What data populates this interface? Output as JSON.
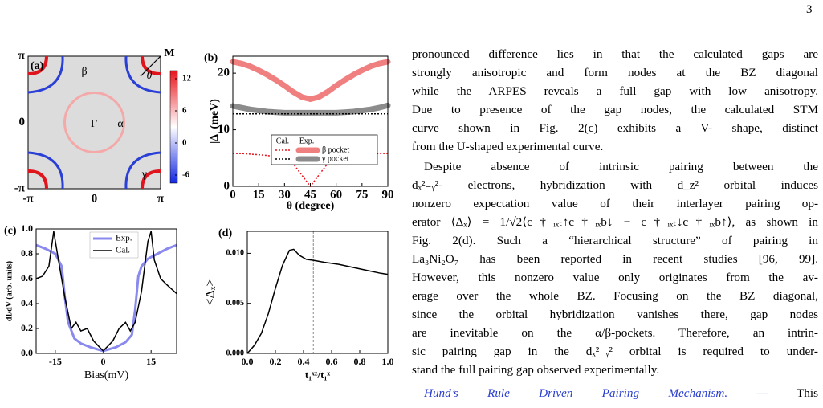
{
  "page_number": "3",
  "chart_data": [
    {
      "type": "bz-map",
      "panel_label": "(a)",
      "xlim": [
        -3.14159,
        3.14159
      ],
      "ylim": [
        -3.14159,
        3.14159
      ],
      "xticks": [
        {
          "value": -3.14159,
          "label": "-π"
        },
        0,
        {
          "value": 3.14159,
          "label": "π"
        }
      ],
      "yticks": [
        {
          "value": -3.14159,
          "label": "-π"
        },
        0,
        {
          "value": 3.14159,
          "label": "π"
        }
      ],
      "annotations": [
        "β",
        "Γ",
        "α",
        "γ",
        "M",
        "θ"
      ],
      "clim": [
        -7.5,
        13.5
      ],
      "cticks": [
        12,
        6,
        0,
        -6
      ],
      "colormap": [
        "#e8141c",
        "#ffffff",
        "#1428e0"
      ]
    },
    {
      "type": "line",
      "panel_label": "(b)",
      "x_label": "θ (degree)",
      "y_label": "|Δ| (meV)",
      "x": [
        0,
        5,
        10,
        15,
        20,
        25,
        30,
        35,
        40,
        45,
        50,
        55,
        60,
        65,
        70,
        75,
        80,
        85,
        90
      ],
      "xlim": [
        0,
        90
      ],
      "xticks": [
        0,
        15,
        30,
        45,
        60,
        75,
        90
      ],
      "ylim": [
        0,
        23
      ],
      "yticks": [
        0,
        10,
        20
      ],
      "legend_columns": [
        "Cal.",
        "Exp."
      ],
      "series": [
        {
          "name": "β pocket",
          "cal_color": "#e8141c",
          "exp_color": "#f08080",
          "cal_values": [
            5.8,
            5.8,
            5.7,
            5.6,
            5.45,
            5.2,
            5.0,
            4.0,
            2.0,
            0.0,
            2.0,
            4.0,
            5.0,
            5.2,
            5.45,
            5.6,
            5.7,
            5.8,
            5.8
          ],
          "exp_values": [
            22,
            21.7,
            21.2,
            20.5,
            19.7,
            18.8,
            17.8,
            16.7,
            15.8,
            15.4,
            15.8,
            16.7,
            17.8,
            18.8,
            19.7,
            20.5,
            21.2,
            21.7,
            22
          ]
        },
        {
          "name": "γ pocket",
          "cal_color": "#000000",
          "exp_color": "#8c8c8c",
          "cal_values": [
            12.8,
            12.8,
            12.8,
            12.8,
            12.8,
            12.8,
            12.8,
            12.8,
            12.8,
            12.8,
            12.8,
            12.8,
            12.8,
            12.8,
            12.8,
            12.8,
            12.8,
            12.8,
            12.8
          ],
          "exp_values": [
            14.2,
            13.9,
            13.6,
            13.4,
            13.2,
            13.1,
            13.0,
            13.0,
            13.0,
            13.0,
            13.0,
            13.0,
            13.0,
            13.1,
            13.2,
            13.4,
            13.6,
            13.9,
            14.3
          ]
        }
      ]
    },
    {
      "type": "line",
      "panel_label": "(c)",
      "x_label": "Bias(mV)",
      "y_label": "dI/dV (arb. units)",
      "xlim": [
        -21,
        23
      ],
      "xticks": [
        -15,
        0,
        15
      ],
      "ylim": [
        0,
        1.0
      ],
      "yticks": [
        {
          "value": 0,
          "label": "0.0"
        },
        0.2,
        0.4,
        0.6,
        0.8,
        {
          "value": 1.0,
          "label": "1.0"
        }
      ],
      "series": [
        {
          "name": "Exp.",
          "color": "#8a8aee",
          "x": [
            -21,
            -18,
            -15,
            -13,
            -12,
            -11,
            -9,
            -7,
            -4,
            0,
            4,
            7,
            9,
            10,
            11,
            12,
            14,
            17,
            20,
            23
          ],
          "values": [
            0.87,
            0.84,
            0.8,
            0.7,
            0.45,
            0.25,
            0.12,
            0.08,
            0.05,
            0.02,
            0.05,
            0.09,
            0.15,
            0.35,
            0.62,
            0.7,
            0.76,
            0.8,
            0.84,
            0.87
          ]
        },
        {
          "name": "Cal.",
          "color": "#000000",
          "x": [
            -21,
            -19,
            -17,
            -15.5,
            -14,
            -12,
            -10,
            -8.5,
            -7,
            -5,
            -3,
            0,
            3,
            5,
            7,
            8.5,
            10,
            12,
            14,
            15,
            16,
            18,
            20,
            23
          ],
          "values": [
            0.6,
            0.62,
            0.7,
            0.98,
            0.75,
            0.45,
            0.2,
            0.25,
            0.18,
            0.2,
            0.1,
            0.02,
            0.1,
            0.2,
            0.25,
            0.18,
            0.25,
            0.5,
            0.9,
            0.98,
            0.75,
            0.6,
            0.55,
            0.48
          ]
        }
      ]
    },
    {
      "type": "line",
      "panel_label": "(d)",
      "x_label": "t₁ˣᶻ/t₁ˣ",
      "y_label": "<Δₓ>",
      "xlim": [
        0,
        1.0
      ],
      "xticks": [
        {
          "value": 0,
          "label": "0.0"
        },
        0.2,
        0.4,
        0.6,
        0.8,
        {
          "value": 1.0,
          "label": "1.0"
        }
      ],
      "ylim": [
        0,
        0.0122
      ],
      "yticks": [
        {
          "value": 0,
          "label": "0.000"
        },
        0.005,
        {
          "value": 0.01,
          "label": "0.010"
        }
      ],
      "marker_x": 0.47,
      "series": [
        {
          "color": "#000000",
          "x": [
            0,
            0.05,
            0.1,
            0.15,
            0.2,
            0.25,
            0.3,
            0.33,
            0.37,
            0.42,
            0.47,
            0.55,
            0.65,
            0.75,
            0.85,
            0.95,
            1.0
          ],
          "values": [
            0,
            0.0008,
            0.002,
            0.004,
            0.0065,
            0.0088,
            0.0103,
            0.0104,
            0.0098,
            0.0094,
            0.0093,
            0.0091,
            0.0089,
            0.0086,
            0.0083,
            0.008,
            0.0079
          ]
        }
      ]
    }
  ],
  "text": {
    "paragraph_1": [
      "pronounced difference lies in that the calculated gaps are",
      "strongly anisotropic and form nodes at the BZ diagonal",
      "while the ARPES reveals a full gap with low anisotropy.",
      "Due to presence of the gap nodes, the calculated STM",
      "curve shown in Fig. 2(c) exhibits a V- shape, distinct",
      "from the U-shaped experimental curve."
    ],
    "paragraph_2": [
      "Despite absence of intrinsic pairing between the",
      "dₓ²₋ᵧ²- electrons, hybridization with d_z² orbital induces",
      "nonzero expectation value of their interlayer pairing op-",
      "erator ⟨Δₓ⟩ = 1/√2⟨c†ᵢₓₜ↑c†ᵢₓb↓ − c†ᵢₓₜ↓c†ᵢₓb↑⟩, as shown in",
      "Fig. 2(d). Such a “hierarchical structure” of pairing in",
      "La₃Ni₂O₇ has been reported in recent studies [96, 99].",
      "However, this nonzero value only originates from the av-",
      "erage over the whole BZ. Focusing on the BZ diagonal,",
      "since the orbital hybridization vanishes there, gap nodes",
      "are inevitable on the α/β-pockets. Therefore, an intrin-",
      "sic pairing gap in the dₓ²₋ᵧ² orbital is required to under-",
      "stand the full pairing gap observed experimentally."
    ],
    "heading": "Hund’s Rule Driven Pairing Mechanism. —",
    "heading_continuation": "This"
  }
}
